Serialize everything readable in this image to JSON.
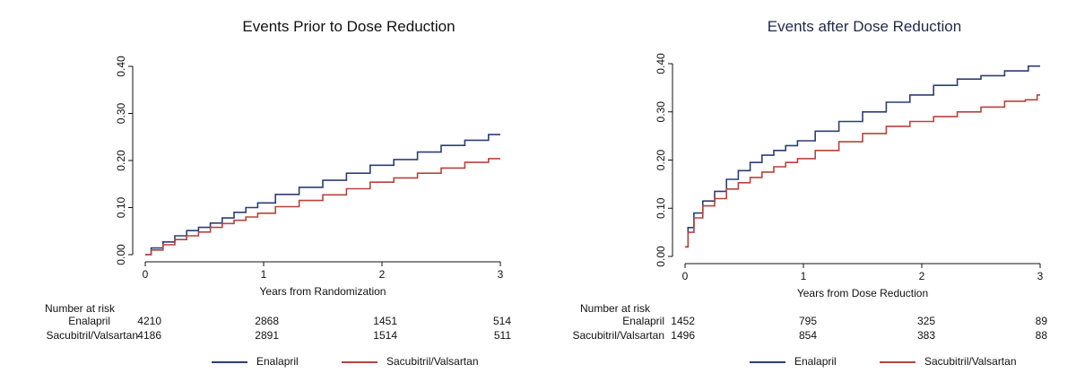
{
  "chart_data": [
    {
      "type": "line",
      "title": "Events Prior to Dose Reduction",
      "xlabel": "Years from Randomization",
      "ylabel": "",
      "xlim": [
        0,
        3
      ],
      "ylim": [
        0,
        0.4
      ],
      "xticks": [
        "0",
        "1",
        "2",
        "3"
      ],
      "yticks": [
        "0.00",
        "0.10",
        "0.20",
        "0.30",
        "0.40"
      ],
      "grid": false,
      "legend_position": "bottom",
      "series": [
        {
          "name": "Enalapril",
          "color": "#2c3e73",
          "x": [
            0,
            0.1,
            0.2,
            0.3,
            0.4,
            0.5,
            0.6,
            0.7,
            0.8,
            0.9,
            1.0,
            1.2,
            1.4,
            1.6,
            1.8,
            2.0,
            2.2,
            2.4,
            2.6,
            2.8,
            3.0
          ],
          "y": [
            0,
            0.014,
            0.027,
            0.04,
            0.051,
            0.058,
            0.067,
            0.078,
            0.09,
            0.1,
            0.11,
            0.128,
            0.143,
            0.158,
            0.173,
            0.19,
            0.202,
            0.218,
            0.232,
            0.243,
            0.255
          ]
        },
        {
          "name": "Sacubitril/Valsartan",
          "color": "#b5443c",
          "x": [
            0,
            0.1,
            0.2,
            0.3,
            0.4,
            0.5,
            0.6,
            0.7,
            0.8,
            0.9,
            1.0,
            1.2,
            1.4,
            1.6,
            1.8,
            2.0,
            2.2,
            2.4,
            2.6,
            2.8,
            3.0
          ],
          "y": [
            0,
            0.01,
            0.021,
            0.032,
            0.04,
            0.048,
            0.058,
            0.066,
            0.073,
            0.08,
            0.088,
            0.102,
            0.115,
            0.127,
            0.14,
            0.154,
            0.163,
            0.173,
            0.184,
            0.196,
            0.204
          ]
        }
      ],
      "risk_table": {
        "title": "Number at risk",
        "rows": [
          {
            "name": "Enalapril",
            "values": [
              "4210",
              "2868",
              "1451",
              "514"
            ]
          },
          {
            "name": "Sacubitril/Valsartan",
            "values": [
              "4186",
              "2891",
              "1514",
              "511"
            ]
          }
        ]
      }
    },
    {
      "type": "line",
      "title": "Events after Dose Reduction",
      "xlabel": "Years from Dose Reduction",
      "ylabel": "",
      "xlim": [
        0,
        3
      ],
      "ylim": [
        0,
        0.4
      ],
      "xticks": [
        "0",
        "1",
        "2",
        "3"
      ],
      "yticks": [
        "0.00",
        "0.10",
        "0.20",
        "0.30",
        "0.40"
      ],
      "grid": false,
      "legend_position": "bottom",
      "series": [
        {
          "name": "Enalapril",
          "color": "#2c3e73",
          "x": [
            0,
            0.05,
            0.1,
            0.2,
            0.3,
            0.4,
            0.5,
            0.6,
            0.7,
            0.8,
            0.9,
            1.0,
            1.2,
            1.4,
            1.6,
            1.8,
            2.0,
            2.2,
            2.4,
            2.6,
            2.8,
            3.0
          ],
          "y": [
            0.02,
            0.06,
            0.09,
            0.115,
            0.135,
            0.16,
            0.178,
            0.195,
            0.21,
            0.22,
            0.23,
            0.24,
            0.26,
            0.28,
            0.3,
            0.32,
            0.335,
            0.355,
            0.368,
            0.375,
            0.385,
            0.395
          ]
        },
        {
          "name": "Sacubitril/Valsartan",
          "color": "#b5443c",
          "x": [
            0,
            0.05,
            0.1,
            0.2,
            0.3,
            0.4,
            0.5,
            0.6,
            0.7,
            0.8,
            0.9,
            1.0,
            1.2,
            1.4,
            1.6,
            1.8,
            2.0,
            2.2,
            2.4,
            2.6,
            2.8,
            2.95,
            3.0
          ],
          "y": [
            0.02,
            0.05,
            0.08,
            0.105,
            0.12,
            0.14,
            0.153,
            0.164,
            0.175,
            0.186,
            0.195,
            0.203,
            0.22,
            0.238,
            0.255,
            0.27,
            0.28,
            0.29,
            0.3,
            0.31,
            0.322,
            0.325,
            0.335
          ]
        }
      ],
      "risk_table": {
        "title": "Number at risk",
        "rows": [
          {
            "name": "Enalapril",
            "values": [
              "1452",
              "795",
              "325",
              "89"
            ]
          },
          {
            "name": "Sacubitril/Valsartan",
            "values": [
              "1496",
              "854",
              "383",
              "88"
            ]
          }
        ]
      }
    }
  ]
}
